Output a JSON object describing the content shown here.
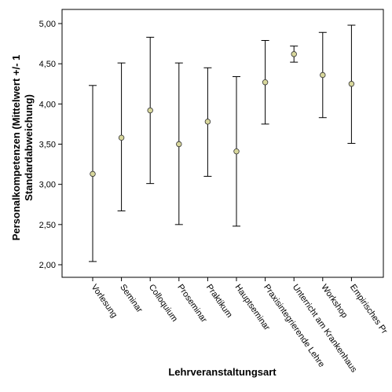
{
  "chart_data": {
    "type": "errorbar",
    "xlabel": "Lehrveranstaltungsart",
    "ylabel_line1": "Personalkompetenzen (Mittelwert +/- 1",
    "ylabel_line2": "Standardabweichung)",
    "ylim": [
      1.9,
      5.1
    ],
    "yticks": [
      "2,00",
      "2,50",
      "3,00",
      "3,50",
      "4,00",
      "4,50",
      "5,00"
    ],
    "ytick_values": [
      2.0,
      2.5,
      3.0,
      3.5,
      4.0,
      4.5,
      5.0
    ],
    "categories": [
      "Vorlesung",
      "Seminar",
      "Colloquium",
      "Proseminar",
      "Praktikum",
      "Hauptseminar",
      "Praxisintegrierende Lehre",
      "Unterricht am Krankenhaus",
      "Workshop",
      "Empirisches Pr"
    ],
    "mean": [
      3.13,
      3.58,
      3.92,
      3.5,
      3.78,
      3.41,
      4.27,
      4.62,
      4.36,
      4.25
    ],
    "lower": [
      2.04,
      2.67,
      3.01,
      2.5,
      3.1,
      2.48,
      3.75,
      4.52,
      3.83,
      3.51
    ],
    "upper": [
      4.23,
      4.51,
      4.83,
      4.51,
      4.45,
      4.34,
      4.79,
      4.72,
      4.89,
      4.98
    ],
    "grid": false,
    "marker_color": "#d8d79c"
  }
}
